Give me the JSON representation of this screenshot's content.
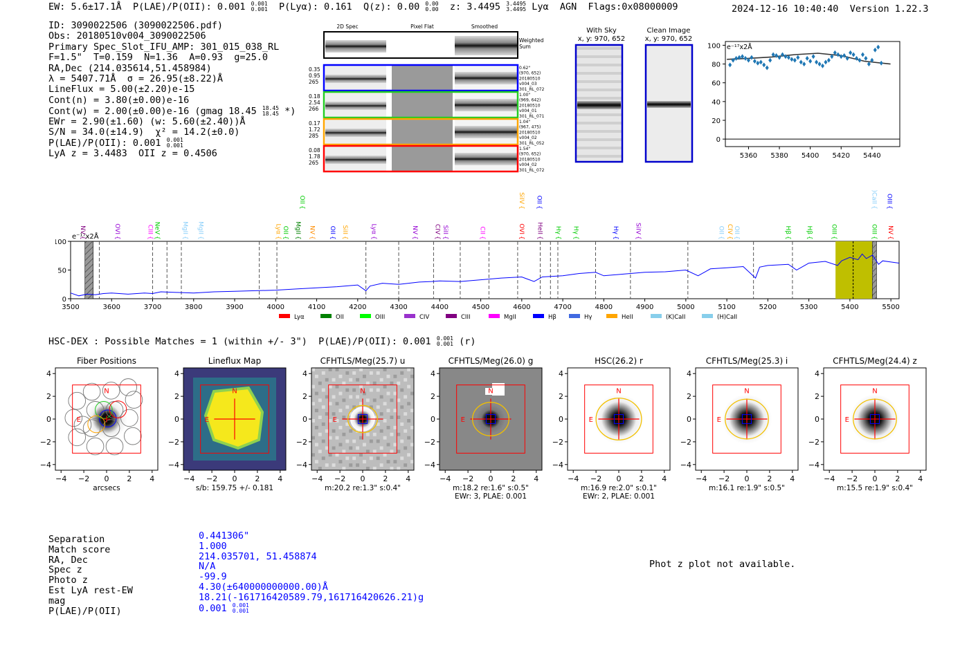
{
  "header": {
    "ew": "EW: 5.6±17.1Å",
    "plae_label": "P(LAE)/P(OII): 0.001",
    "plae_up": "0.001",
    "plae_lo": "0.001",
    "plya": "P(Lyα): 0.161",
    "qz_label": "Q(z): 0.00",
    "qz_up": "0.00",
    "qz_lo": "0.00",
    "z_label": "z: 3.4495",
    "z_up": "3.4495",
    "z_lo": "3.4495",
    "tags": "Lyα  AGN  Flags:0x08000009",
    "timestamp": "2024-12-16 10:40:40",
    "version": "Version 1.22.3"
  },
  "info": {
    "id": "ID: 3090022506 (3090022506.pdf)",
    "obs": "Obs: 20180510v004_3090022506",
    "slot": "Primary Spec_Slot_IFU_AMP: 301_015_038_RL",
    "fit": "F=1.5\"  T=0.159  N=1.36  A=0.93  g=25.0",
    "radec": "RA,Dec (214.035614,51.458984)",
    "lam": "λ = 5407.71Å  σ = 26.95(±8.22)Å",
    "lineflux": "LineFlux = 5.00(±2.20)e-15",
    "cont_n": "Cont(n) = 3.80(±0.00)e-16",
    "cont_w": "Cont(w) = 2.00(±0.00)e-16 (gmag 18.45",
    "gmag_up": "18.45",
    "gmag_lo": "18.45",
    "cont_w_end": " *)",
    "ewr": "EWr = 2.90(±1.60) (w: 5.60(±2.40))Å",
    "sn": "S/N = 34.0(±14.9)  χ² = 14.2(±0.0)",
    "plae": "P(LAE)/P(OII): 0.001",
    "plae_up": "0.001",
    "plae_lo": "0.001",
    "z": "LyA z = 3.4483  OII z = 0.4506"
  },
  "spec2d": {
    "col_headers": [
      "2D Spec",
      "Pixel Flat",
      "Smoothed"
    ],
    "weighted_label": "Weighted\nSum",
    "rows": [
      {
        "color": "#0000ff",
        "left": [
          "0.35",
          "0.95",
          "265"
        ],
        "right": [
          "0.62\"",
          "(970, 652)",
          "20180510",
          "v004_03",
          "301_RL_072"
        ]
      },
      {
        "color": "#22cc22",
        "left": [
          "0.18",
          "2.54",
          "266"
        ],
        "right": [
          "1.00\"",
          "(969, 642)",
          "20180510",
          "v004_01",
          "301_RL_071"
        ]
      },
      {
        "color": "#ffa500",
        "left": [
          "0.17",
          "1.72",
          "285"
        ],
        "right": [
          "1.04\"",
          "(967, 475)",
          "20180510",
          "v004_02",
          "301_RL_052"
        ]
      },
      {
        "color": "#ff0000",
        "left": [
          "0.08",
          "1.78",
          "265"
        ],
        "right": [
          "1.54\"",
          "(970, 652)",
          "20180510",
          "v004_02",
          "301_RL_072"
        ]
      }
    ]
  },
  "with_sky": {
    "title": "With Sky",
    "coords": "x, y: 970, 652"
  },
  "clean_image": {
    "title": "Clean Image",
    "coords": "x, y: 970, 652"
  },
  "hsc": {
    "title": "HSC-DEX : Possible Matches = 1 (within +/- 3\")  P(LAE)/P(OII): 0.001",
    "up": "0.001",
    "lo": "0.001",
    "tail": "(r)"
  },
  "cutouts": [
    {
      "title": "Fiber Positions",
      "sub1": "arcsecs",
      "sub2": "",
      "n": "N",
      "e": "E"
    },
    {
      "title": "Lineflux Map",
      "sub1": "s/b: 159.75 +/- 0.181",
      "sub2": "",
      "n": "N",
      "e": "E"
    },
    {
      "title": "CFHTLS/Meg(25.7) u",
      "sub1": "m:20.2  re:1.3\"  s:0.4\"",
      "sub2": "",
      "n": "N",
      "e": "E"
    },
    {
      "title": "CFHTLS/Meg(26.0) g",
      "sub1": "m:18.2  re:1.6\"  s:0.5\"",
      "sub2": "EWr: 3, PLAE: 0.001",
      "n": "N",
      "e": "E"
    },
    {
      "title": "HSC(26.2) r",
      "sub1": "m:16.9  re:2.0\"  s:0.1\"",
      "sub2": "EWr: 2, PLAE: 0.001",
      "n": "N",
      "e": "E"
    },
    {
      "title": "CFHTLS/Meg(25.3) i",
      "sub1": "m:16.1  re:1.9\"  s:0.5\"",
      "sub2": "",
      "n": "N",
      "e": "E"
    },
    {
      "title": "CFHTLS/Meg(24.4) z",
      "sub1": "m:15.5  re:1.9\"  s:0.4\"",
      "sub2": "",
      "n": "N",
      "e": "E"
    }
  ],
  "cutout_ticks": [
    "4",
    "2",
    "0",
    "−2",
    "−4"
  ],
  "cutout_xticks": [
    "−4",
    "−2",
    "0",
    "2",
    "4"
  ],
  "match": {
    "labels": [
      "Separation",
      "Match score",
      "RA, Dec",
      "Spec z",
      "Photo z",
      "Est LyA rest-EW",
      "mag",
      "P(LAE)/P(OII)"
    ],
    "values": [
      "0.441306\"",
      "1.000",
      "214.035701, 51.458874",
      "N/A",
      "-99.9",
      "4.30(±640000000000.00)Å",
      "18.21(-161716420589.79,161716420626.21)g",
      "0.001"
    ],
    "plae_up": "0.001",
    "plae_lo": "0.001"
  },
  "photz_note": "Phot z plot not available.",
  "chart_data": [
    {
      "type": "scatter",
      "title": "",
      "ylabel_note": "e⁻¹⁷x2Å",
      "xlim": [
        5345,
        5458
      ],
      "ylim": [
        -8,
        104
      ],
      "xticks": [
        5360,
        5380,
        5400,
        5420,
        5440
      ],
      "yticks": [
        0,
        20,
        40,
        60,
        80,
        100
      ],
      "x": [
        5348,
        5350,
        5352,
        5354,
        5356,
        5358,
        5360,
        5362,
        5364,
        5366,
        5368,
        5370,
        5372,
        5374,
        5376,
        5378,
        5380,
        5382,
        5384,
        5386,
        5388,
        5390,
        5392,
        5394,
        5396,
        5398,
        5400,
        5402,
        5404,
        5406,
        5408,
        5410,
        5412,
        5414,
        5416,
        5418,
        5420,
        5422,
        5424,
        5426,
        5428,
        5430,
        5432,
        5434,
        5436,
        5438,
        5440,
        5442,
        5444,
        5446
      ],
      "y": [
        79,
        84,
        86,
        87,
        88,
        86,
        84,
        87,
        83,
        81,
        82,
        79,
        76,
        84,
        90,
        89,
        87,
        90,
        88,
        87,
        85,
        84,
        87,
        82,
        80,
        86,
        83,
        88,
        82,
        80,
        78,
        82,
        84,
        88,
        92,
        90,
        88,
        89,
        86,
        92,
        90,
        86,
        84,
        90,
        86,
        80,
        84,
        95,
        98,
        81
      ],
      "fit_x": [
        5346,
        5360,
        5375,
        5390,
        5405,
        5420,
        5435,
        5452
      ],
      "fit_y": [
        85,
        86,
        87.5,
        90,
        91.5,
        89,
        83,
        80
      ],
      "marker_color": "#1f77b4",
      "fit_color": "#333333"
    },
    {
      "type": "line",
      "title": "",
      "ylabel_note": "e⁻¹⁷x2Å",
      "xlim": [
        3500,
        5520
      ],
      "ylim": [
        0,
        100
      ],
      "xticks": [
        3500,
        3600,
        3700,
        3800,
        3900,
        4000,
        4100,
        4200,
        4300,
        4400,
        4500,
        4600,
        4700,
        4800,
        4900,
        5000,
        5100,
        5200,
        5300,
        5400,
        5500
      ],
      "yticks": [
        0,
        50,
        100
      ],
      "series": [
        {
          "name": "spectrum",
          "color": "#0000ff",
          "x": [
            3500,
            3520,
            3540,
            3560,
            3580,
            3600,
            3640,
            3680,
            3700,
            3720,
            3760,
            3800,
            3850,
            3900,
            3950,
            4000,
            4050,
            4100,
            4150,
            4200,
            4220,
            4230,
            4260,
            4300,
            4350,
            4380,
            4400,
            4450,
            4500,
            4550,
            4600,
            4630,
            4650,
            4700,
            4740,
            4780,
            4800,
            4850,
            4900,
            4950,
            5000,
            5030,
            5060,
            5100,
            5140,
            5170,
            5180,
            5200,
            5250,
            5270,
            5300,
            5340,
            5370,
            5380,
            5400,
            5420,
            5430,
            5440,
            5455,
            5470,
            5480,
            5500,
            5520
          ],
          "y": [
            10,
            5,
            8,
            7,
            9,
            10,
            8,
            10,
            9,
            12,
            11,
            10,
            12,
            13,
            14,
            15,
            17,
            19,
            21,
            24,
            14,
            22,
            27,
            25,
            29,
            30,
            31,
            30,
            33,
            36,
            38,
            30,
            38,
            40,
            44,
            46,
            40,
            43,
            46,
            47,
            50,
            40,
            52,
            54,
            56,
            36,
            55,
            58,
            60,
            50,
            62,
            65,
            58,
            66,
            72,
            68,
            78,
            70,
            76,
            60,
            66,
            64,
            62
          ]
        }
      ],
      "line_markers": [
        {
          "label": "NV",
          "color": "#800080",
          "x": 3530
        },
        {
          "label": "OVI",
          "color": "#9400d3",
          "x": 3615
        },
        {
          "label": "CIII",
          "color": "#ff00ff",
          "x": 3695
        },
        {
          "label": "NeV",
          "color": "#00cc00",
          "x": 3712
        },
        {
          "label": "MgII",
          "color": "#87cefa",
          "x": 3780
        },
        {
          "label": "MgII",
          "color": "#87cefa",
          "x": 3818
        },
        {
          "label": "Lyα",
          "color": "#ffa500",
          "x": 4007
        },
        {
          "label": "OII",
          "color": "#00cc00",
          "x": 4025
        },
        {
          "label": "MgII",
          "color": "#008000",
          "x": 4055
        },
        {
          "label": "NV",
          "color": "#ff8c00",
          "x": 4090
        },
        {
          "label": "OII",
          "color": "#0000ff",
          "x": 4140
        },
        {
          "label": "SiII",
          "color": "#ffa500",
          "x": 4170
        },
        {
          "label": "Lyα",
          "color": "#9400d3",
          "x": 4240
        },
        {
          "label": "NV",
          "color": "#9400d3",
          "x": 4340
        },
        {
          "label": "CIV",
          "color": "#800080",
          "x": 4395
        },
        {
          "label": "SiII",
          "color": "#9400d3",
          "x": 4415
        },
        {
          "label": "CII",
          "color": "#ff00ff",
          "x": 4505
        },
        {
          "label": "OVI",
          "color": "#ff0000",
          "x": 4600
        },
        {
          "label": "HeII",
          "color": "#800080",
          "x": 4645
        },
        {
          "label": "Hγ",
          "color": "#00cc00",
          "x": 4690
        },
        {
          "label": "Hγ",
          "color": "#00cc00",
          "x": 4733
        },
        {
          "label": "Hγ",
          "color": "#0000ff",
          "x": 4830
        },
        {
          "label": "SiIV",
          "color": "#9400d3",
          "x": 4885
        },
        {
          "label": "OII",
          "color": "#87cefa",
          "x": 5087
        },
        {
          "label": "CIV",
          "color": "#ffa500",
          "x": 5108
        },
        {
          "label": "OII",
          "color": "#87cefa",
          "x": 5125
        },
        {
          "label": "Hβ",
          "color": "#00cc00",
          "x": 5250
        },
        {
          "label": "Hβ",
          "color": "#00cc00",
          "x": 5302
        },
        {
          "label": "OIII",
          "color": "#00cc00",
          "x": 5362
        },
        {
          "label": "OIII",
          "color": "#00cc00",
          "x": 5460
        },
        {
          "label": "NV",
          "color": "#ff0000",
          "x": 5500
        }
      ],
      "line_markers_high": [
        {
          "label": "OII",
          "color": "#00cc00",
          "x": 4065
        },
        {
          "label": "SiIV",
          "color": "#ffa500",
          "x": 4600
        },
        {
          "label": "OII",
          "color": "#0000ff",
          "x": 4643
        },
        {
          "label": "(H)CaII",
          "color": "#87cefa",
          "x": 5460
        },
        {
          "label": "OIII",
          "color": "#0000ff",
          "x": 5497
        }
      ],
      "dashed_lines": [
        3570,
        3700,
        3735,
        3770,
        3960,
        4003,
        4220,
        4300,
        4385,
        4450,
        4520,
        4590,
        4645,
        4670,
        4688,
        4780,
        4865,
        5005,
        5165,
        5260,
        5455
      ],
      "hatched_regions": [
        [
          3535,
          3555
        ],
        [
          5455,
          5465
        ]
      ],
      "highlight_region": [
        5365,
        5458
      ],
      "highlight_center": 5408,
      "legend": [
        {
          "label": "Lyα",
          "color": "#ff0000"
        },
        {
          "label": "OII",
          "color": "#008000"
        },
        {
          "label": "OIII",
          "color": "#00ff00"
        },
        {
          "label": "CIV",
          "color": "#9932cc"
        },
        {
          "label": "CIII",
          "color": "#800080"
        },
        {
          "label": "MgII",
          "color": "#ff00ff"
        },
        {
          "label": "Hβ",
          "color": "#0000ff"
        },
        {
          "label": "Hγ",
          "color": "#4169e1"
        },
        {
          "label": "HeII",
          "color": "#ffa500"
        },
        {
          "label": "(K)CaII",
          "color": "#87ceeb"
        },
        {
          "label": "(H)CaII",
          "color": "#87ceeb"
        }
      ]
    }
  ]
}
